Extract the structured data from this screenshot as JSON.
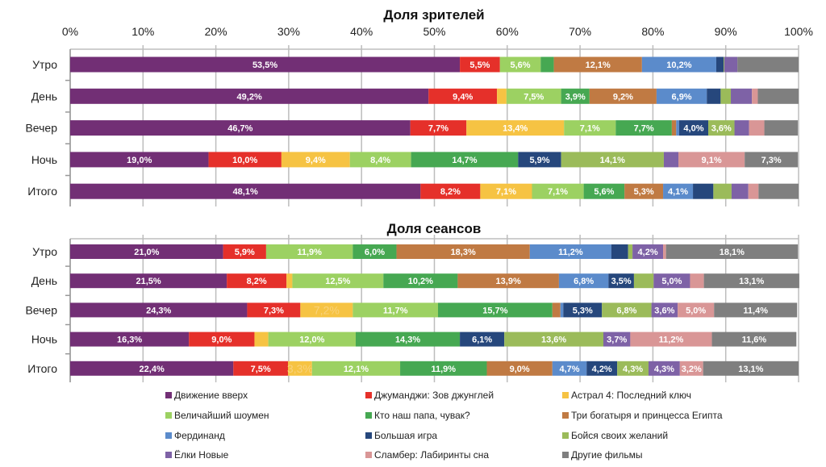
{
  "series_names": [
    "Движение вверх",
    "Джуманджи: Зов джунглей",
    "Астрал 4: Последний ключ",
    "Величайший шоумен",
    "Кто наш папа, чувак?",
    "Три богатыря и принцесса Египта",
    "Фердинанд",
    "Большая игра",
    "Бойся своих желаний",
    "Ёлки Новые",
    "Сламбер: Лабиринты сна",
    "Другие фильмы"
  ],
  "colors": [
    "#722F75",
    "#E5302A",
    "#F6C343",
    "#9CD162",
    "#46A852",
    "#C07A43",
    "#5B8BCB",
    "#26477C",
    "#9BBB5A",
    "#7E62A6",
    "#D99696",
    "#7F7F7F"
  ],
  "chart_data": [
    {
      "type": "bar",
      "orientation": "horizontal",
      "stacked": "100%",
      "title": "Доля зрителей",
      "categories": [
        "Утро",
        "День",
        "Вечер",
        "Ночь",
        "Итого"
      ],
      "xlim": [
        0,
        100
      ],
      "xticks": [
        "0%",
        "10%",
        "20%",
        "30%",
        "40%",
        "50%",
        "60%",
        "70%",
        "80%",
        "90%",
        "100%"
      ],
      "grid": true,
      "rows": [
        {
          "values": [
            53.5,
            5.5,
            0,
            5.6,
            1.8,
            12.1,
            10.2,
            1.0,
            0.1,
            1.8,
            0,
            8.4
          ],
          "labels": [
            "53,5%",
            "5,5%",
            "",
            "5,6%",
            "",
            "12,1%",
            "10,2%",
            "",
            "",
            "",
            "",
            ""
          ]
        },
        {
          "values": [
            49.2,
            9.4,
            1.3,
            7.5,
            3.9,
            9.2,
            6.9,
            1.9,
            1.4,
            2.9,
            0.8,
            5.6
          ],
          "labels": [
            "49,2%",
            "9,4%",
            "",
            "7,5%",
            "3,9%",
            "9,2%",
            "6,9%",
            "",
            "",
            "",
            "",
            ""
          ]
        },
        {
          "values": [
            46.7,
            7.7,
            13.4,
            7.1,
            7.7,
            0.6,
            0.4,
            4.0,
            3.6,
            2.0,
            2.1,
            4.6
          ],
          "labels": [
            "46,7%",
            "7,7%",
            "13,4%",
            "7,1%",
            "7,7%",
            "",
            "",
            "4,0%",
            "3,6%",
            "",
            "",
            ""
          ]
        },
        {
          "values": [
            19.0,
            10.0,
            9.4,
            8.4,
            14.7,
            0,
            0,
            5.9,
            14.1,
            2.0,
            9.1,
            7.3
          ],
          "labels": [
            "19,0%",
            "10,0%",
            "9,4%",
            "8,4%",
            "14,7%",
            "",
            "",
            "5,9%",
            "14,1%",
            "",
            "9,1%",
            "7,3%"
          ]
        },
        {
          "values": [
            48.1,
            8.2,
            7.1,
            7.1,
            5.6,
            5.3,
            4.1,
            2.8,
            2.5,
            2.3,
            1.4,
            5.5
          ],
          "labels": [
            "48,1%",
            "8,2%",
            "7,1%",
            "7,1%",
            "5,6%",
            "5,3%",
            "4,1%",
            "",
            "",
            "",
            "",
            ""
          ]
        }
      ]
    },
    {
      "type": "bar",
      "orientation": "horizontal",
      "stacked": "100%",
      "title": "Доля сеансов",
      "categories": [
        "Утро",
        "День",
        "Вечер",
        "Ночь",
        "Итого"
      ],
      "xlim": [
        0,
        100
      ],
      "grid": true,
      "rows": [
        {
          "values": [
            21.0,
            5.9,
            0,
            11.9,
            6.0,
            18.3,
            11.2,
            2.3,
            0.6,
            4.2,
            0.4,
            18.1
          ],
          "labels": [
            "21,0%",
            "5,9%",
            "",
            "11,9%",
            "6,0%",
            "18,3%",
            "11,2%",
            "",
            "",
            "4,2%",
            "",
            "18,1%"
          ]
        },
        {
          "values": [
            21.5,
            8.2,
            0.8,
            12.5,
            10.2,
            13.9,
            6.8,
            3.5,
            2.7,
            5.0,
            1.9,
            13.1
          ],
          "labels": [
            "21,5%",
            "8,2%",
            "",
            "12,5%",
            "10,2%",
            "13,9%",
            "6,8%",
            "3,5%",
            "",
            "5,0%",
            "",
            "13,1%"
          ]
        },
        {
          "values": [
            24.3,
            7.3,
            7.2,
            11.7,
            15.7,
            1.1,
            0.4,
            5.3,
            6.8,
            3.6,
            5.0,
            11.4
          ],
          "labels": [
            "24,3%",
            "7,3%",
            "7,2%",
            "11,7%",
            "15,7%",
            "",
            "",
            "5,3%",
            "6,8%",
            "3,6%",
            "5,0%",
            "11,4%"
          ]
        },
        {
          "values": [
            16.3,
            9.0,
            1.9,
            12.0,
            14.3,
            0,
            0,
            6.1,
            13.6,
            3.7,
            11.2,
            11.6
          ],
          "labels": [
            "16,3%",
            "9,0%",
            "",
            "12,0%",
            "14,3%",
            "",
            "",
            "6,1%",
            "13,6%",
            "3,7%",
            "11,2%",
            "11,6%"
          ]
        },
        {
          "values": [
            22.4,
            7.5,
            3.3,
            12.1,
            11.9,
            9.0,
            4.7,
            4.2,
            4.3,
            4.3,
            3.2,
            13.1
          ],
          "labels": [
            "22,4%",
            "7,5%",
            "3,3%",
            "12,1%",
            "11,9%",
            "9,0%",
            "4,7%",
            "4,2%",
            "4,3%",
            "4,3%",
            "3,2%",
            "13,1%"
          ]
        }
      ]
    }
  ],
  "legend": {
    "placement": "bottom",
    "columns": 3
  }
}
